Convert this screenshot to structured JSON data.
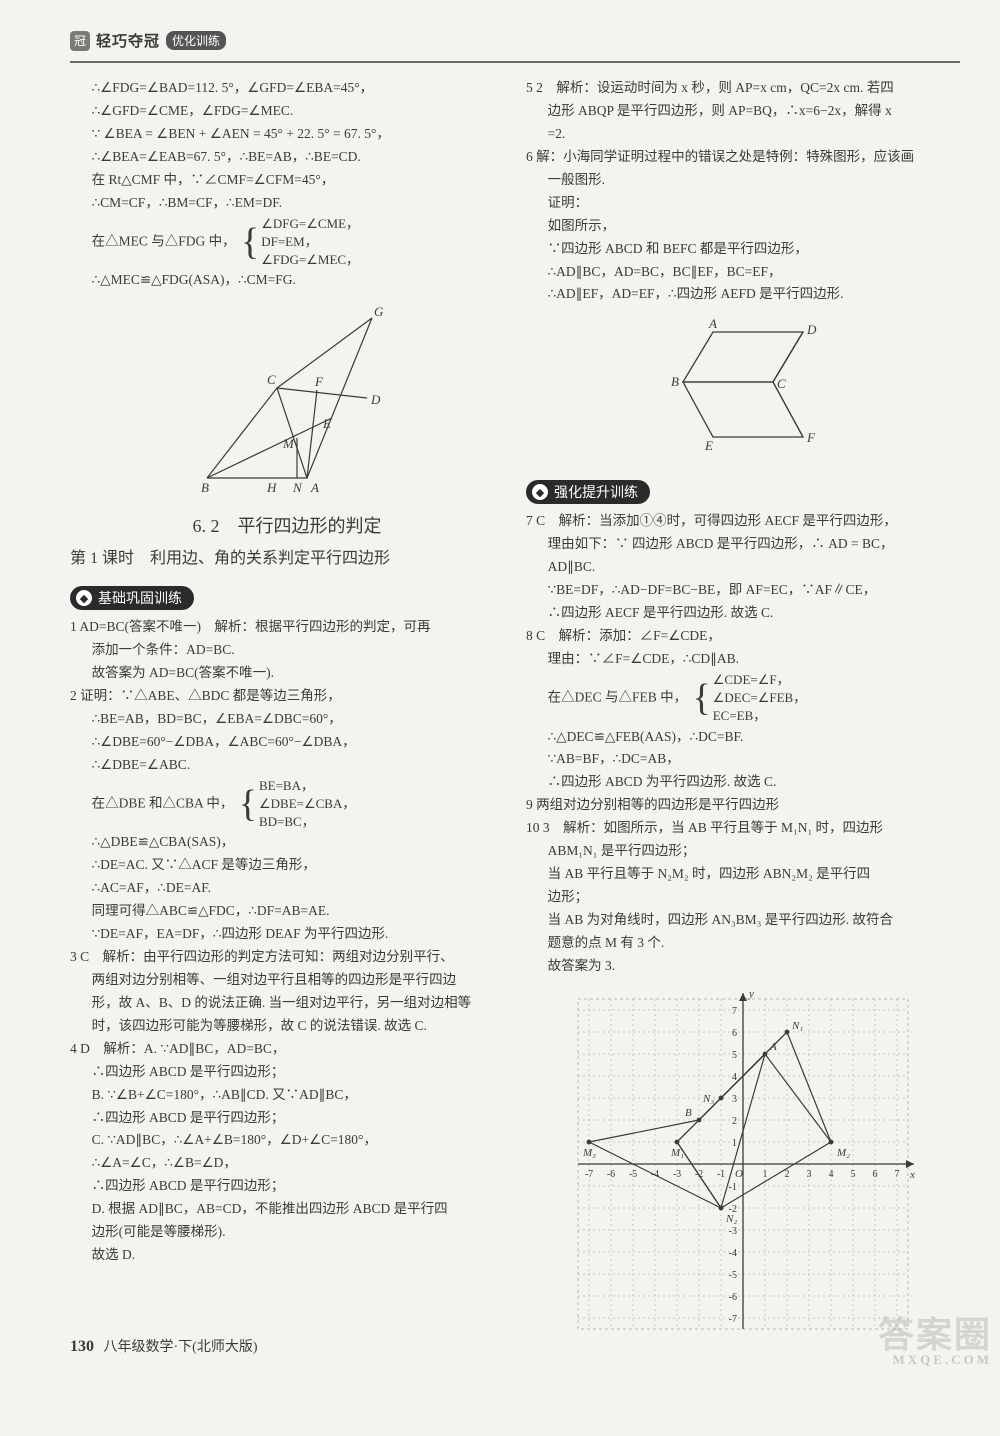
{
  "header": {
    "brand": "轻巧夺冠",
    "tag": "优化训练"
  },
  "left": {
    "pre": [
      "∴∠FDG=∠BAD=112. 5°，∠GFD=∠EBA=45°，",
      "∴∠GFD=∠CME，∠FDG=∠MEC.",
      "∵ ∠BEA = ∠BEN + ∠AEN = 45° + 22. 5° = 67. 5°，",
      "∴∠BEA=∠EAB=67. 5°，∴BE=AB，∴BE=CD.",
      "在 Rt△CMF 中，∵∠CMF=∠CFM=45°，",
      "∴CM=CF，∴BM=CF，∴EM=DF."
    ],
    "brace1_left": "在△MEC 与△FDG 中，",
    "brace1_lines": [
      "∠DFG=∠CME，",
      "DF=EM，",
      "∠FDG=∠MEC，"
    ],
    "pre_after": "∴△MEC≌△FDG(ASA)，∴CM=FG.",
    "diagram1_labels": [
      "G",
      "D",
      "C",
      "F",
      "E",
      "M",
      "B",
      "H",
      "N",
      "A"
    ],
    "sec_title": "6. 2　平行四边形的判定",
    "sub_title": "第 1 课时　利用边、角的关系判定平行四边形",
    "badge1": "基础巩固训练",
    "q1_head": "1 AD=BC(答案不唯一)　解析：根据平行四边形的判定，可再",
    "q1_lines": [
      "添加一个条件：AD=BC.",
      "故答案为 AD=BC(答案不唯一)."
    ],
    "q2_head": "2 证明：∵△ABE、△BDC 都是等边三角形，",
    "q2_lines": [
      "∴BE=AB，BD=BC，∠EBA=∠DBC=60°，",
      "∴∠DBE=60°−∠DBA，∠ABC=60°−∠DBA，",
      "∴∠DBE=∠ABC."
    ],
    "q2_brace_left": "在△DBE 和△CBA 中，",
    "q2_brace_lines": [
      "BE=BA，",
      "∠DBE=∠CBA，",
      "BD=BC，"
    ],
    "q2_after": [
      "∴△DBE≌△CBA(SAS)，",
      "∴DE=AC. 又∵△ACF 是等边三角形，",
      "∴AC=AF，∴DE=AF.",
      "同理可得△ABC≌△FDC，∴DF=AB=AE.",
      "∵DE=AF，EA=DF，∴四边形 DEAF 为平行四边形."
    ],
    "q3_head": "3 C　解析：由平行四边形的判定方法可知：两组对边分别平行、",
    "q3_lines": [
      "两组对边分别相等、一组对边平行且相等的四边形是平行四边",
      "形，故 A、B、D 的说法正确. 当一组对边平行，另一组对边相等",
      "时，该四边形可能为等腰梯形，故 C 的说法错误. 故选 C."
    ],
    "q4_head": "4 D　解析：A. ∵AD∥BC，AD=BC，",
    "q4_lines": [
      "∴四边形 ABCD 是平行四边形；",
      "B. ∵∠B+∠C=180°，∴AB∥CD. 又∵AD∥BC，",
      "∴四边形 ABCD 是平行四边形；",
      "C. ∵AD∥BC，∴∠A+∠B=180°，∠D+∠C=180°，",
      "∴∠A=∠C，∴∠B=∠D，",
      "∴四边形 ABCD 是平行四边形；",
      "D. 根据 AD∥BC，AB=CD，不能推出四边形 ABCD 是平行四",
      "边形(可能是等腰梯形).",
      "故选 D."
    ]
  },
  "right": {
    "q5_head": "5 2　解析：设运动时间为 x 秒，则 AP=x cm，QC=2x cm. 若四",
    "q5_lines": [
      "边形 ABQP 是平行四边形，则 AP=BQ，∴x=6−2x，解得 x",
      "=2."
    ],
    "q6_head": "6 解：小海同学证明过程中的错误之处是特例：特殊图形，应该画",
    "q6_lines": [
      "一般图形.",
      "证明：",
      "如图所示，",
      "∵四边形 ABCD 和 BEFC 都是平行四边形，",
      "∴AD∥BC，AD=BC，BC∥EF，BC=EF，",
      "∴AD∥EF，AD=EF，∴四边形 AEFD 是平行四边形."
    ],
    "diagram2_labels": [
      "A",
      "D",
      "B",
      "C",
      "E",
      "F"
    ],
    "badge2": "强化提升训练",
    "q7_head": "7 C　解析：当添加①④时，可得四边形 AECF 是平行四边形，",
    "q7_lines": [
      "理由如下：∵ 四边形 ABCD 是平行四边形，∴ AD = BC，",
      "AD∥BC.",
      "∵BE=DF，∴AD−DF=BC−BE，即 AF=EC，∵AF∥CE，",
      "∴四边形 AECF 是平行四边形. 故选 C."
    ],
    "q8_head": "8 C　解析：添加：∠F=∠CDE，",
    "q8_lines": [
      "理由：∵∠F=∠CDE，∴CD∥AB."
    ],
    "q8_brace_left": "在△DEC 与△FEB 中，",
    "q8_brace_lines": [
      "∠CDE=∠F，",
      "∠DEC=∠FEB，",
      "EC=EB，"
    ],
    "q8_after": [
      "∴△DEC≌△FEB(AAS)，∴DC=BF.",
      "∵AB=BF，∴DC=AB，",
      "∴四边形 ABCD 为平行四边形. 故选 C."
    ],
    "q9": "9 两组对边分别相等的四边形是平行四边形",
    "q10_head": "10 3　解析：如图所示，当 AB 平行且等于 M₁N₁ 时，四边形",
    "q10_lines": [
      "ABM₁N₁ 是平行四边形；",
      "当 AB 平行且等于 N₂M₂ 时，四边形 ABN₂M₂ 是平行四",
      "边形；",
      "当 AB 为对角线时，四边形 AN₃BM₃ 是平行四边形. 故符合",
      "题意的点 M 有 3 个.",
      "故答案为 3."
    ],
    "grid": {
      "x_ticks": [
        -7,
        -6,
        -5,
        -4,
        -3,
        -2,
        -1,
        1,
        2,
        3,
        4,
        5,
        6,
        7
      ],
      "y_ticks": [
        -7,
        -6,
        -5,
        -4,
        -3,
        -2,
        -1,
        1,
        2,
        3,
        4,
        5,
        6,
        7
      ],
      "points": {
        "O": [
          0,
          0
        ],
        "A": [
          1,
          5
        ],
        "B": [
          -2,
          2
        ],
        "N1": [
          2,
          6
        ],
        "N2": [
          -1,
          -2
        ],
        "N3": [
          -1,
          3
        ],
        "M1": [
          -3,
          1
        ],
        "M2": [
          4,
          1
        ],
        "M3": [
          -7,
          1
        ]
      },
      "grid_color": "#b8b8b2",
      "line_color": "#3a3a38",
      "bg": "#f4f3ef"
    }
  },
  "footer": {
    "page": "130",
    "text": "八年级数学·下(北师大版)"
  },
  "watermark": {
    "big": "答案圈",
    "small": "MXQE.COM"
  }
}
